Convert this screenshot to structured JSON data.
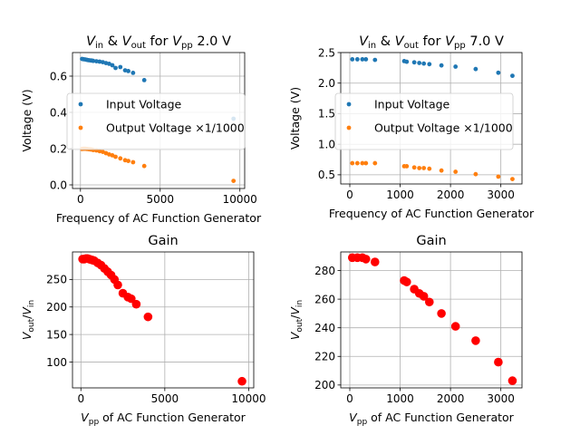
{
  "chart_data": [
    {
      "type": "scatter",
      "title": "V_in & V_out for V_pp 2.0 V",
      "title_parts": {
        "v1": "V",
        "s1": "in",
        "mid": " & ",
        "v2": "V",
        "s2": "out",
        "mid2": " for ",
        "v3": "V",
        "s3": "pp",
        "tail": " 2.0 V"
      },
      "xlabel": "Frequency of AC Function Generator",
      "ylabel": "Voltage (V)",
      "xlim": [
        -500,
        10300
      ],
      "ylim": [
        -0.02,
        0.73
      ],
      "xticks": [
        0,
        5000,
        10000
      ],
      "xtick_labels": [
        "0",
        "5000",
        "10000"
      ],
      "yticks": [
        0.0,
        0.2,
        0.4,
        0.6
      ],
      "ytick_labels": [
        "0.0",
        "0.2",
        "0.4",
        "0.6"
      ],
      "grid": true,
      "legend_placement": "center-left",
      "series": [
        {
          "name": "Input Voltage",
          "color": "#1f77b4",
          "x": [
            100,
            200,
            300,
            400,
            500,
            600,
            700,
            800,
            1000,
            1200,
            1400,
            1600,
            1800,
            2000,
            2200,
            2500,
            2800,
            3000,
            3300,
            4000,
            9600
          ],
          "y": [
            0.695,
            0.693,
            0.692,
            0.69,
            0.688,
            0.687,
            0.686,
            0.684,
            0.682,
            0.68,
            0.677,
            0.672,
            0.668,
            0.66,
            0.645,
            0.65,
            0.632,
            0.628,
            0.618,
            0.578,
            0.365
          ]
        },
        {
          "name": "Output Voltage ×1/1000",
          "color": "#ff7f0e",
          "x": [
            100,
            200,
            300,
            400,
            500,
            600,
            700,
            800,
            1000,
            1200,
            1400,
            1600,
            1800,
            2000,
            2200,
            2500,
            2800,
            3000,
            3300,
            4000,
            9600
          ],
          "y": [
            0.198,
            0.199,
            0.199,
            0.198,
            0.197,
            0.196,
            0.195,
            0.192,
            0.19,
            0.186,
            0.182,
            0.175,
            0.168,
            0.163,
            0.155,
            0.146,
            0.136,
            0.132,
            0.125,
            0.104,
            0.022
          ]
        }
      ]
    },
    {
      "type": "scatter",
      "title": "V_in & V_out for V_pp 7.0 V",
      "title_parts": {
        "v1": "V",
        "s1": "in",
        "mid": " & ",
        "v2": "V",
        "s2": "out",
        "mid2": " for ",
        "v3": "V",
        "s3": "pp",
        "tail": " 7.0 V"
      },
      "xlabel": "Frequency of AC Function Generator",
      "ylabel": "Voltage (V)",
      "xlim": [
        -180,
        3420
      ],
      "ylim": [
        0.35,
        2.5
      ],
      "xticks": [
        0,
        1000,
        2000,
        3000
      ],
      "xtick_labels": [
        "0",
        "1000",
        "2000",
        "3000"
      ],
      "yticks": [
        0.5,
        1.0,
        1.5,
        2.0,
        2.5
      ],
      "ytick_labels": [
        "0.5",
        "1.0",
        "1.5",
        "2.0",
        "2.5"
      ],
      "grid": true,
      "legend_placement": "center-left",
      "series": [
        {
          "name": "Input Voltage",
          "color": "#1f77b4",
          "x": [
            50,
            150,
            250,
            320,
            500,
            1080,
            1130,
            1280,
            1380,
            1470,
            1580,
            1820,
            2100,
            2500,
            2950,
            3230
          ],
          "y": [
            2.39,
            2.39,
            2.39,
            2.39,
            2.38,
            2.36,
            2.35,
            2.34,
            2.33,
            2.32,
            2.31,
            2.29,
            2.27,
            2.23,
            2.17,
            2.12
          ]
        },
        {
          "name": "Output Voltage ×1/1000",
          "color": "#ff7f0e",
          "x": [
            50,
            150,
            250,
            320,
            500,
            1080,
            1130,
            1280,
            1380,
            1470,
            1580,
            1820,
            2100,
            2500,
            2950,
            3230
          ],
          "y": [
            0.69,
            0.69,
            0.69,
            0.69,
            0.69,
            0.64,
            0.64,
            0.62,
            0.61,
            0.61,
            0.6,
            0.57,
            0.55,
            0.51,
            0.47,
            0.43
          ]
        }
      ]
    },
    {
      "type": "scatter",
      "title": "Gain",
      "xlabel": "V_pp of AC Function Generator",
      "xlabel_parts": {
        "v": "V",
        "s": "pp",
        "tail": " of AC Function Generator"
      },
      "ylabel": "V_out/V_in",
      "ylabel_parts": {
        "v1": "V",
        "s1": "out",
        "slash": "/",
        "v2": "V",
        "s2": "in"
      },
      "xlim": [
        -500,
        10300
      ],
      "ylim": [
        53,
        300
      ],
      "xticks": [
        0,
        5000,
        10000
      ],
      "xtick_labels": [
        "0",
        "5000",
        "10000"
      ],
      "yticks": [
        100,
        150,
        200,
        250
      ],
      "ytick_labels": [
        "100",
        "150",
        "200",
        "250"
      ],
      "grid": true,
      "series": [
        {
          "name": "",
          "color": "#ff0000",
          "x": [
            100,
            200,
            300,
            400,
            500,
            600,
            700,
            800,
            1000,
            1200,
            1400,
            1600,
            1800,
            2000,
            2200,
            2500,
            2800,
            3000,
            3300,
            4000,
            9600
          ],
          "y": [
            287,
            287,
            288,
            288,
            287,
            286,
            285,
            284,
            280,
            276,
            270,
            264,
            258,
            250,
            240,
            225,
            218,
            215,
            205,
            182,
            65
          ]
        }
      ]
    },
    {
      "type": "scatter",
      "title": "Gain",
      "xlabel": "V_pp of AC Function Generator",
      "xlabel_parts": {
        "v": "V",
        "s": "pp",
        "tail": " of AC Function Generator"
      },
      "ylabel": "V_out/V_in",
      "ylabel_parts": {
        "v1": "V",
        "s1": "out",
        "slash": "/",
        "v2": "V",
        "s2": "in"
      },
      "xlim": [
        -180,
        3420
      ],
      "ylim": [
        198,
        293
      ],
      "xticks": [
        0,
        1000,
        2000,
        3000
      ],
      "xtick_labels": [
        "0",
        "1000",
        "2000",
        "3000"
      ],
      "yticks": [
        200,
        220,
        240,
        260,
        280
      ],
      "ytick_labels": [
        "200",
        "220",
        "240",
        "260",
        "280"
      ],
      "grid": true,
      "series": [
        {
          "name": "",
          "color": "#ff0000",
          "x": [
            50,
            150,
            250,
            320,
            500,
            1080,
            1130,
            1280,
            1380,
            1470,
            1580,
            1820,
            2100,
            2500,
            2950,
            3230
          ],
          "y": [
            289,
            289,
            289,
            288,
            286,
            273,
            272,
            267,
            264,
            262,
            258,
            250,
            241,
            231,
            216,
            203
          ]
        }
      ]
    }
  ]
}
